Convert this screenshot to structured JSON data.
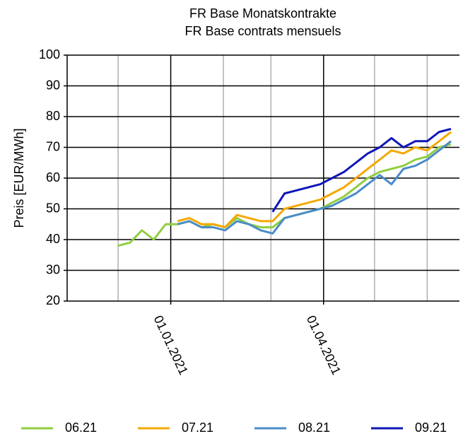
{
  "chart_data": {
    "type": "line",
    "title": [
      "FR Base Monatskontrakte",
      "FR Base contrats mensuels"
    ],
    "ylabel": "Preis [EUR/MWh]",
    "x": [
      "2020-12-01",
      "2020-12-08",
      "2020-12-15",
      "2020-12-22",
      "2020-12-29",
      "2021-01-05",
      "2021-01-12",
      "2021-01-19",
      "2021-01-26",
      "2021-02-02",
      "2021-02-09",
      "2021-02-16",
      "2021-02-23",
      "2021-03-02",
      "2021-03-09",
      "2021-03-16",
      "2021-03-23",
      "2021-03-30",
      "2021-04-06",
      "2021-04-13",
      "2021-04-20",
      "2021-04-27",
      "2021-05-04",
      "2021-05-11",
      "2021-05-18",
      "2021-05-25",
      "2021-06-01",
      "2021-06-08",
      "2021-06-15"
    ],
    "series": [
      {
        "name": "06.21",
        "color": "#8fce3e",
        "values": [
          38,
          39,
          43,
          40,
          45,
          45,
          46,
          44,
          45,
          44,
          47,
          45,
          44,
          44,
          47,
          48,
          49,
          50,
          52,
          54,
          57,
          60,
          62,
          63,
          64,
          66,
          67,
          70,
          71
        ]
      },
      {
        "name": "07.21",
        "color": "#f5a800",
        "values": [
          null,
          null,
          null,
          null,
          null,
          46,
          47,
          45,
          45,
          44,
          48,
          47,
          46,
          46,
          50,
          51,
          52,
          53,
          55,
          57,
          60,
          63,
          66,
          69,
          68,
          70,
          69,
          72,
          75
        ]
      },
      {
        "name": "08.21",
        "color": "#4a8cc8",
        "values": [
          null,
          null,
          null,
          null,
          null,
          45,
          46,
          44,
          44,
          43,
          46,
          45,
          43,
          42,
          47,
          48,
          49,
          50,
          51,
          53,
          55,
          58,
          61,
          58,
          63,
          64,
          66,
          69,
          72
        ]
      },
      {
        "name": "09.21",
        "color": "#0f16b8",
        "values": [
          null,
          null,
          null,
          null,
          null,
          null,
          null,
          null,
          null,
          null,
          null,
          null,
          null,
          49,
          55,
          56,
          57,
          58,
          60,
          62,
          65,
          68,
          70,
          73,
          70,
          72,
          72,
          75,
          76
        ]
      }
    ],
    "xlim": [
      "2020-11-01",
      "2021-06-20"
    ],
    "xticks": [
      {
        "value": "2021-01-01",
        "label": "01.01.2021"
      },
      {
        "value": "2021-04-01",
        "label": "01.04.2021"
      }
    ],
    "xminor": [
      "2020-12-01",
      "2021-02-01",
      "2021-03-01",
      "2021-05-01",
      "2021-06-01"
    ],
    "ylim": [
      20,
      100
    ],
    "yticks": [
      20,
      30,
      40,
      50,
      60,
      70,
      80,
      90,
      100
    ],
    "grid": true,
    "legend": "bottom"
  }
}
